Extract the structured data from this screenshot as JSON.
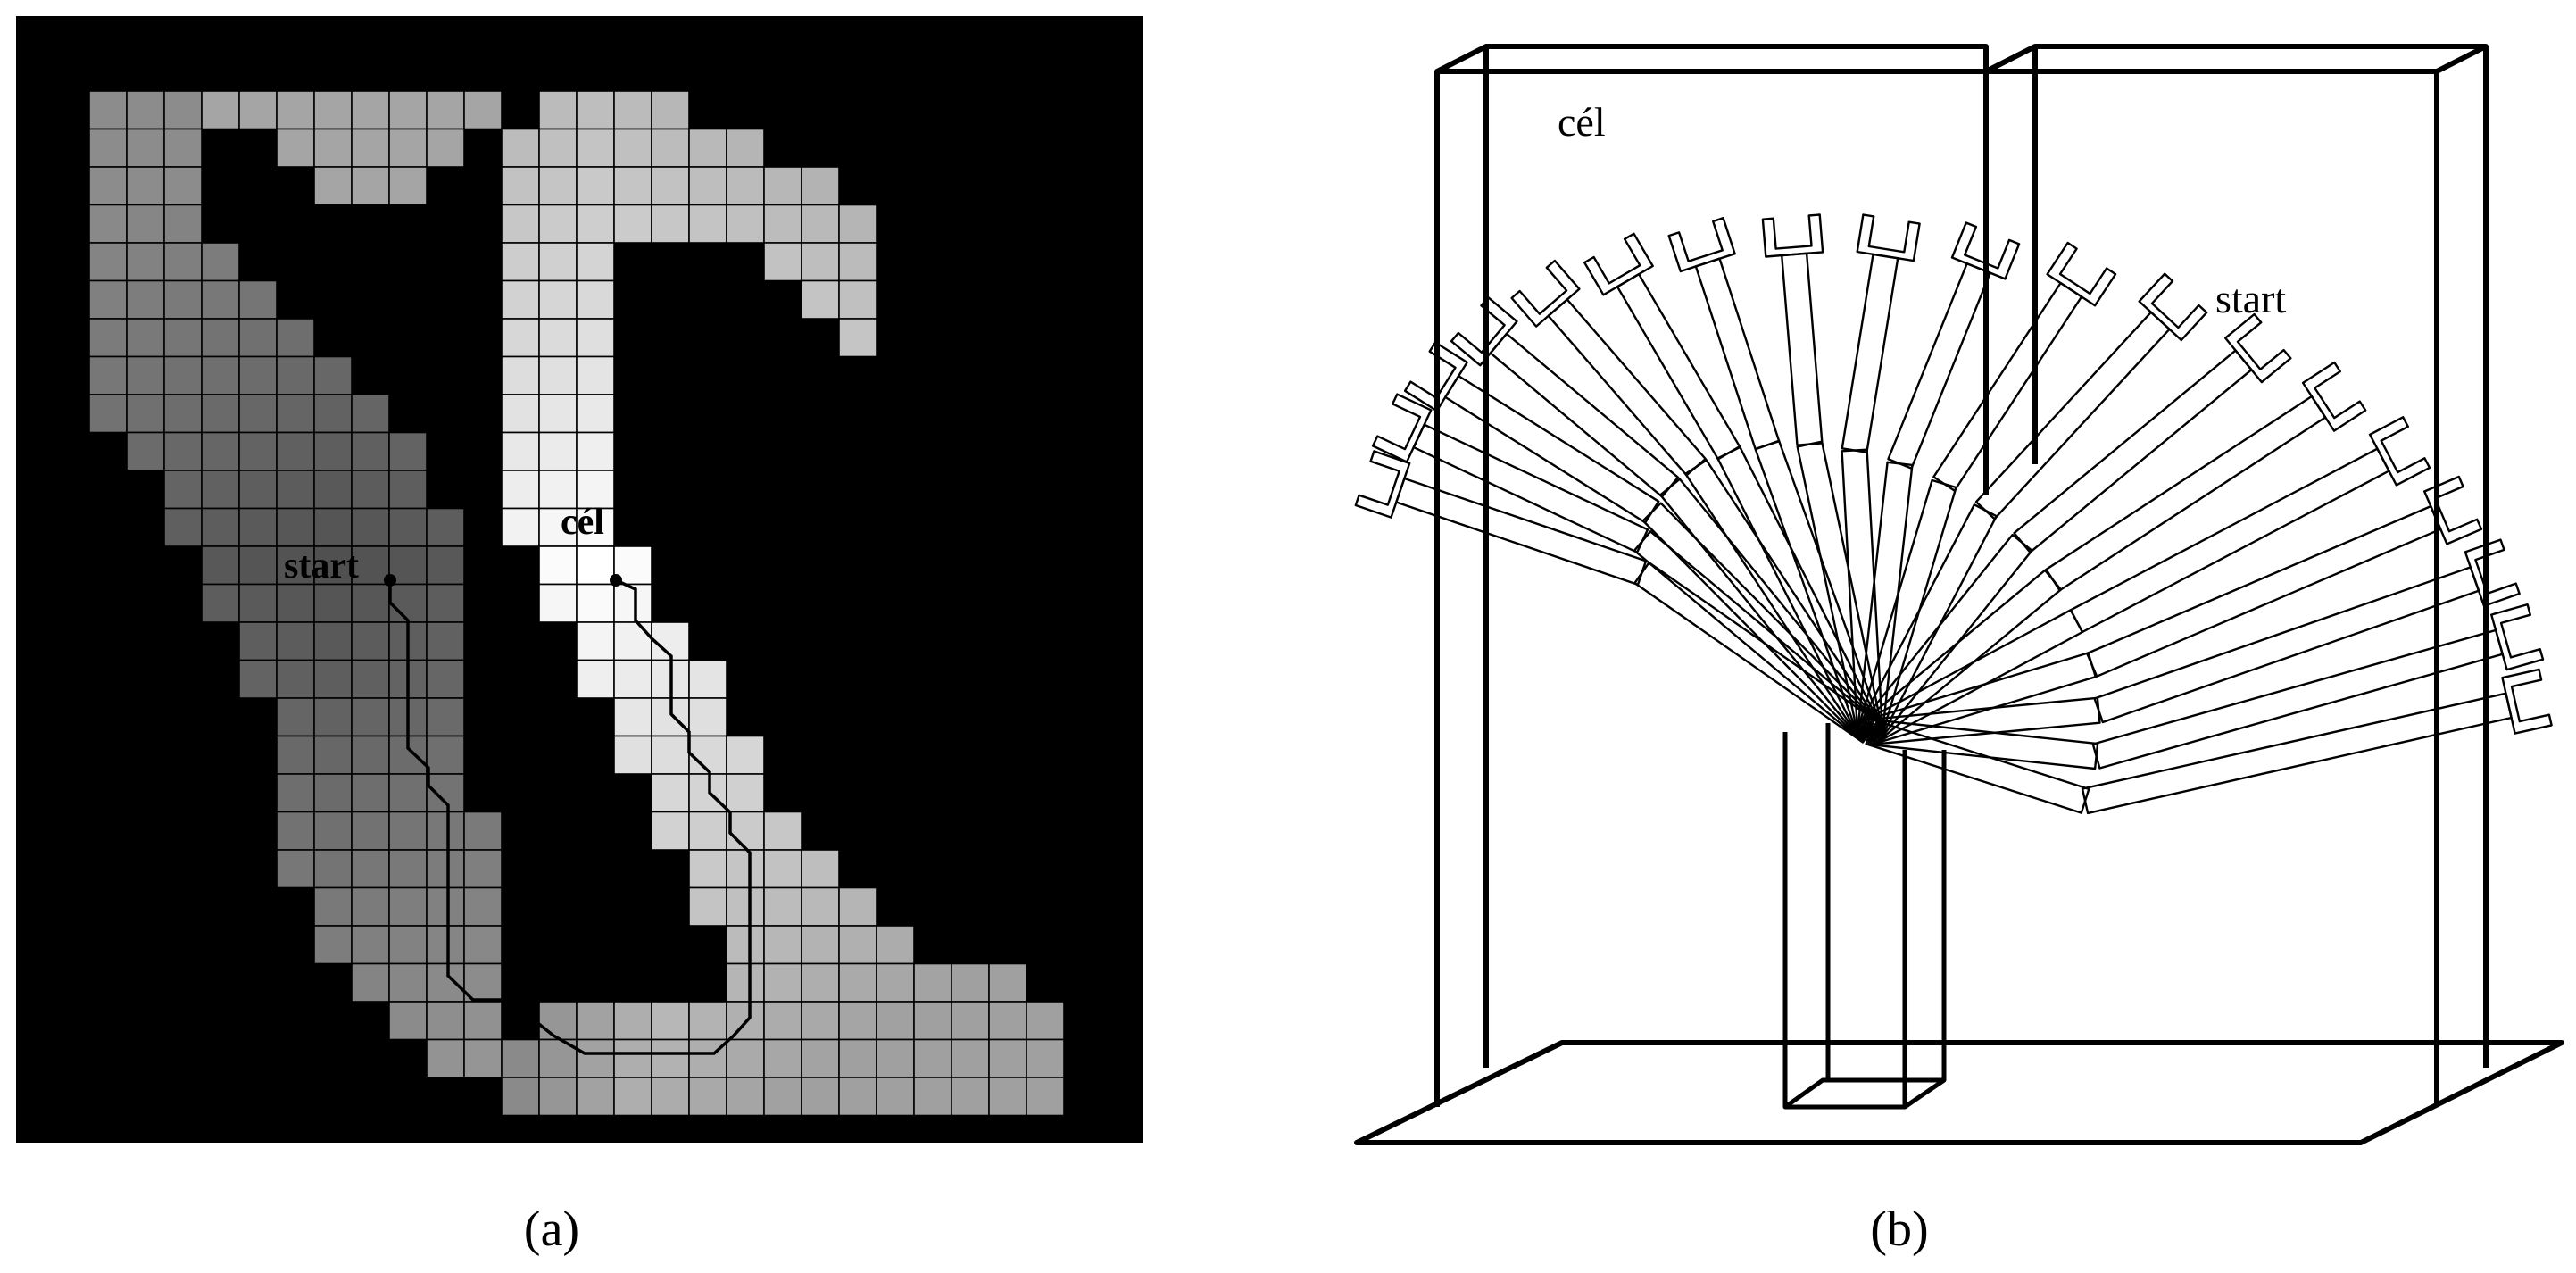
{
  "panel_a": {
    "caption": "(a)",
    "start_label": "start",
    "goal_label": "cél",
    "colors": {
      "background": "#000000",
      "grid_line": "#000000",
      "path": "#000000",
      "shade_darkest": "#505050",
      "shade_lightest": "#ffffff"
    }
  },
  "panel_b": {
    "caption": "(b)",
    "start_label": "start",
    "goal_label": "cél",
    "colors": {
      "wire": "#000000"
    }
  }
}
